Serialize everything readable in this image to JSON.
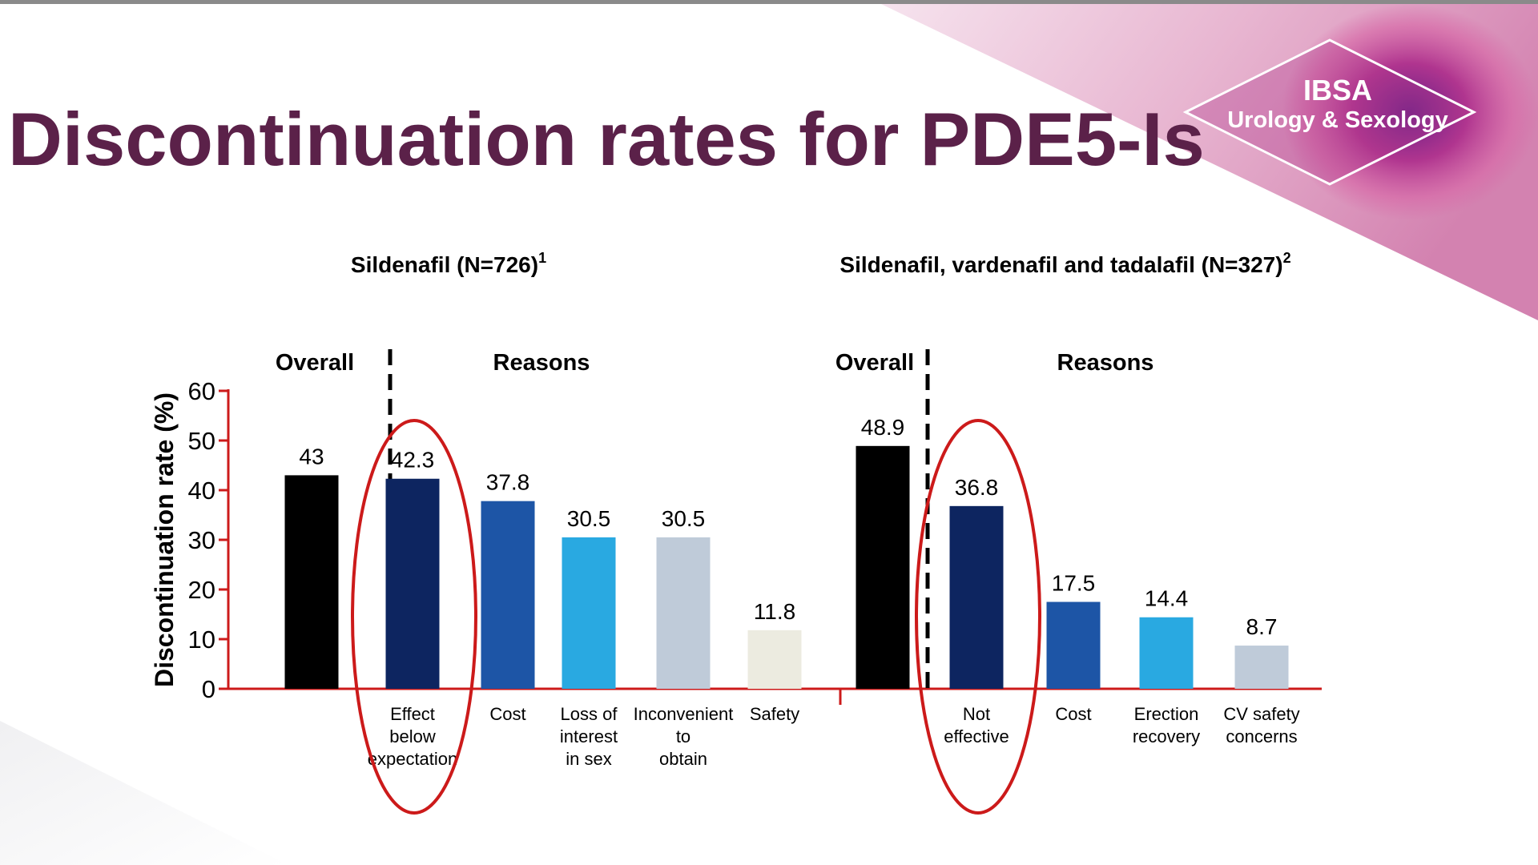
{
  "slide": {
    "title": "Discontinuation rates for PDE5-Is",
    "logo": {
      "line1": "IBSA",
      "line2": "Urology & Sexology"
    }
  },
  "colors": {
    "title": "#5b2149",
    "axis": "#cc1a1a",
    "highlight_ellipse": "#cc1a1a",
    "overall": "#000000",
    "navy": "#0d2560",
    "blue": "#1d55a6",
    "sky": "#29a9e1",
    "grey_blue": "#bfcbd9",
    "cream": "#ecebe0"
  },
  "chart_data": {
    "type": "bar",
    "ylabel": "Discontinuation rate (%)",
    "ylim": [
      0,
      60
    ],
    "yticks": [
      0,
      10,
      20,
      30,
      40,
      50,
      60
    ],
    "grid": false,
    "groups": [
      {
        "title": "Sildenafil (N=726)",
        "title_sup": "1",
        "overall_label": "Overall",
        "reasons_label": "Reasons",
        "bars": [
          {
            "label": [],
            "value": 43,
            "value_text": "43",
            "color": "#000000",
            "kind": "overall"
          },
          {
            "label": [
              "Effect",
              "below",
              "expectation"
            ],
            "value": 42.3,
            "value_text": "42.3",
            "color": "#0d2560",
            "highlighted": true
          },
          {
            "label": [
              "Cost"
            ],
            "value": 37.8,
            "value_text": "37.8",
            "color": "#1d55a6"
          },
          {
            "label": [
              "Loss of",
              "interest",
              "in sex"
            ],
            "value": 30.5,
            "value_text": "30.5",
            "color": "#29a9e1"
          },
          {
            "label": [
              "Inconvenient",
              "to",
              "obtain"
            ],
            "value": 30.5,
            "value_text": "30.5",
            "color": "#bfcbd9"
          },
          {
            "label": [
              "Safety"
            ],
            "value": 11.8,
            "value_text": "11.8",
            "color": "#ecebe0"
          }
        ]
      },
      {
        "title": "Sildenafil, vardenafil and tadalafil (N=327)",
        "title_sup": "2",
        "overall_label": "Overall",
        "reasons_label": "Reasons",
        "bars": [
          {
            "label": [],
            "value": 48.9,
            "value_text": "48.9",
            "color": "#000000",
            "kind": "overall"
          },
          {
            "label": [
              "Not",
              "effective"
            ],
            "value": 36.8,
            "value_text": "36.8",
            "color": "#0d2560",
            "highlighted": true
          },
          {
            "label": [
              "Cost"
            ],
            "value": 17.5,
            "value_text": "17.5",
            "color": "#1d55a6"
          },
          {
            "label": [
              "Erection",
              "recovery"
            ],
            "value": 14.4,
            "value_text": "14.4",
            "color": "#29a9e1"
          },
          {
            "label": [
              "CV safety",
              "concerns"
            ],
            "value": 8.7,
            "value_text": "8.7",
            "color": "#bfcbd9"
          }
        ]
      }
    ]
  }
}
